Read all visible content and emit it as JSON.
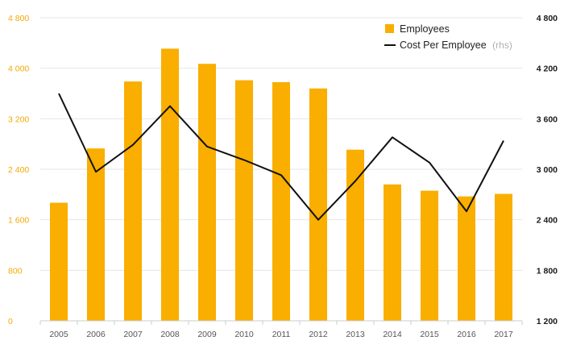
{
  "chart_data": {
    "type": "bar",
    "categories": [
      "2005",
      "2006",
      "2007",
      "2008",
      "2009",
      "2010",
      "2011",
      "2012",
      "2013",
      "2014",
      "2015",
      "2016",
      "2017"
    ],
    "series": [
      {
        "name": "Employees",
        "type": "bar",
        "axis": "left",
        "color": "#f9ae00",
        "values": [
          1870,
          2730,
          3790,
          4310,
          4070,
          3810,
          3780,
          3680,
          2710,
          2160,
          2060,
          1970,
          2010
        ]
      },
      {
        "name": "Cost Per Employee",
        "suffix": "(rhs)",
        "type": "line",
        "axis": "right",
        "color": "#111111",
        "values": [
          3900,
          2970,
          3290,
          3750,
          3270,
          3110,
          2930,
          2400,
          2860,
          3380,
          3080,
          2500,
          3340
        ]
      }
    ],
    "y_left": {
      "min": 0,
      "max": 4800,
      "ticks": [
        "0",
        "800",
        "1 600",
        "2 400",
        "3 200",
        "4 000",
        "4 800"
      ]
    },
    "y_right": {
      "min": 1200,
      "max": 4800,
      "ticks": [
        "1 200",
        "1 800",
        "2 400",
        "3 000",
        "3 600",
        "4 200",
        "4 800"
      ]
    },
    "grid": true,
    "legend_position": "top-right"
  }
}
